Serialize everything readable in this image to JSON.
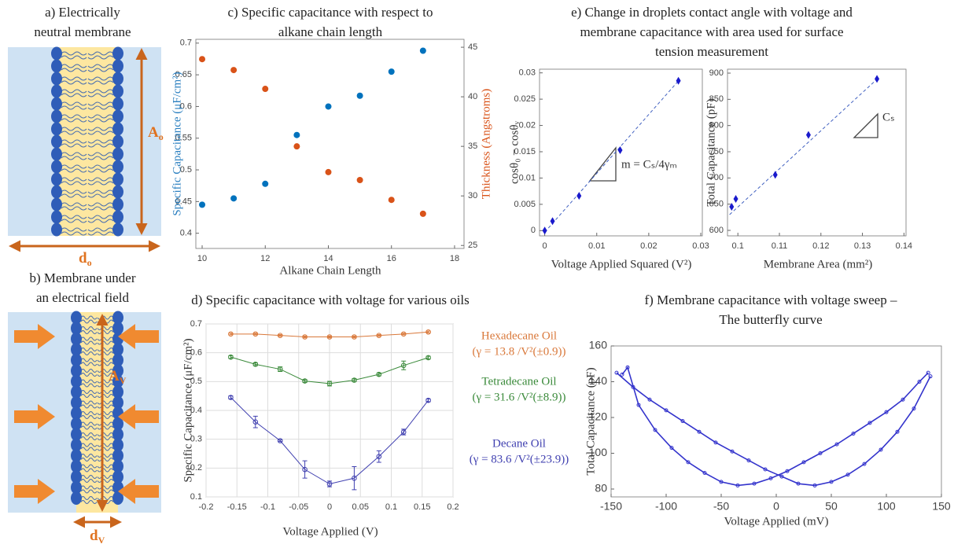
{
  "diagrams": [
    {
      "title": [
        "a) Electrically",
        "neutral membrane"
      ],
      "height_label": {
        "text": "A",
        "sub": "o"
      },
      "width_label": {
        "text": "d",
        "sub": "o"
      }
    },
    {
      "title": [
        "b) Membrane under",
        "an electrical field"
      ],
      "height_label": {
        "text": "A",
        "sub": "V"
      },
      "width_label": {
        "text": "d",
        "sub": "V"
      }
    }
  ],
  "chart_data": [
    {
      "type": "scatter",
      "title": [
        "c) Specific capacitance with respect to",
        "alkane chain length"
      ],
      "xlabel": "Alkane Chain Length",
      "ylabel": "Specific Capacitance (μF/cm²)",
      "y2label": "Thickness (Angstroms)",
      "ylabel_color": "#2a7fc0",
      "y2label_color": "#d95319",
      "marker": "circle",
      "x": [
        10,
        11,
        12,
        13,
        14,
        15,
        16,
        17
      ],
      "series": [
        {
          "color": "#0072bd",
          "values": [
            0.445,
            0.455,
            0.478,
            0.555,
            0.6,
            0.617,
            0.655,
            0.688
          ]
        },
        {
          "color": "#d95319",
          "axis": "y2",
          "values": [
            43.8,
            42.7,
            40.8,
            35.0,
            32.4,
            31.6,
            29.6,
            28.2
          ]
        }
      ],
      "xlim": [
        9.8,
        18.3
      ],
      "xticks": [
        10,
        12,
        14,
        16,
        18
      ],
      "ylim": [
        0.376,
        0.706
      ],
      "yticks": [
        0.4,
        0.45,
        0.5,
        0.55,
        0.6,
        0.65,
        0.7
      ],
      "y2lim": [
        24.7,
        45.8
      ],
      "y2ticks": [
        25,
        30,
        35,
        40,
        45
      ]
    },
    {
      "type": "line",
      "title": [
        "d) Specific capacitance with voltage for various oils"
      ],
      "xlabel": "Voltage Applied (V)",
      "ylabel": "Specific Capacitance (μF/cm²)",
      "marker": "open-circle",
      "grid": true,
      "x": [
        -0.16,
        -0.12,
        -0.08,
        -0.04,
        0,
        0.04,
        0.08,
        0.12,
        0.16
      ],
      "series": [
        {
          "name": "Hexadecane Oil",
          "note": "(γ = 13.8 /V²(±0.9))",
          "color": "#d9783a",
          "values": [
            0.665,
            0.665,
            0.66,
            0.655,
            0.655,
            0.655,
            0.66,
            0.665,
            0.672
          ],
          "errors": [
            0.003,
            0.003,
            0.003,
            0.003,
            0.003,
            0.003,
            0.003,
            0.003,
            0.003
          ]
        },
        {
          "name": "Tetradecane Oil",
          "note": "(γ = 31.6 /V²(±8.9))",
          "color": "#3a8a3a",
          "values": [
            0.585,
            0.56,
            0.543,
            0.502,
            0.493,
            0.505,
            0.525,
            0.556,
            0.583
          ],
          "errors": [
            0.005,
            0.005,
            0.008,
            0.005,
            0.008,
            0.005,
            0.005,
            0.015,
            0.005
          ]
        },
        {
          "name": "Decane Oil",
          "note": "(γ = 83.6 /V²(±23.9))",
          "color": "#4040b0",
          "values": [
            0.445,
            0.36,
            0.295,
            0.195,
            0.145,
            0.165,
            0.24,
            0.325,
            0.435
          ],
          "errors": [
            0.005,
            0.02,
            0.003,
            0.03,
            0.01,
            0.04,
            0.02,
            0.01,
            0.005
          ]
        }
      ],
      "xlim": [
        -0.2,
        0.2
      ],
      "xticks": [
        -0.2,
        -0.15,
        -0.1,
        -0.05,
        0,
        0.05,
        0.1,
        0.15,
        0.2
      ],
      "ylim": [
        0.1,
        0.7
      ],
      "yticks": [
        0.1,
        0.2,
        0.3,
        0.4,
        0.5,
        0.6,
        0.7
      ]
    },
    {
      "type": "scatter",
      "title": [
        "e) Change in droplets contact angle with voltage and",
        "membrane capacitance with area used for surface",
        "tension measurement"
      ],
      "xlabel": "Voltage Applied Squared (V²)",
      "ylabel": "cosθ₀ − cosθᵥ",
      "marker": "diamond",
      "annotation": "m = Cₛ/4γₘ",
      "x": [
        0,
        0.0015,
        0.0066,
        0.0145,
        0.0257
      ],
      "series": [
        {
          "color": "#1a1acc",
          "values": [
            0,
            0.0018,
            0.0066,
            0.0153,
            0.0285
          ]
        }
      ],
      "fit_line": {
        "x": [
          0,
          0.026
        ],
        "y": [
          -0.0003,
          0.0288
        ]
      },
      "xlim": [
        -0.001,
        0.0303
      ],
      "xticks": [
        0,
        0.01,
        0.02,
        0.03
      ],
      "ylim": [
        -0.001,
        0.0307
      ],
      "yticks": [
        0,
        0.005,
        0.01,
        0.015,
        0.02,
        0.025,
        0.03
      ]
    },
    {
      "type": "scatter",
      "xlabel": "Membrane Area (mm²)",
      "ylabel": "Total Capacitance (pF)",
      "marker": "diamond",
      "annotation": "Cₛ",
      "x": [
        0.0985,
        0.0995,
        0.109,
        0.117,
        0.1335
      ],
      "series": [
        {
          "color": "#1a1acc",
          "values": [
            645,
            660,
            706,
            782,
            889
          ]
        }
      ],
      "fit_line": {
        "x": [
          0.098,
          0.134
        ],
        "y": [
          630,
          892
        ]
      },
      "xlim": [
        0.0975,
        0.1405
      ],
      "xticks": [
        0.1,
        0.11,
        0.12,
        0.13,
        0.14
      ],
      "ylim": [
        589.5,
        907.5
      ],
      "yticks": [
        600,
        650,
        700,
        750,
        800,
        850,
        900
      ]
    },
    {
      "type": "line",
      "title": [
        "f) Membrane capacitance with voltage sweep –",
        "The butterfly curve"
      ],
      "xlabel": "Voltage Applied (mV)",
      "ylabel": "Total Capacitance (pF)",
      "marker": "open-circle",
      "series": [
        {
          "color": "#3333cc",
          "x": [
            -145,
            -130,
            -115,
            -100,
            -85,
            -70,
            -55,
            -40,
            -25,
            -10,
            5,
            20,
            35,
            50,
            65,
            80,
            95,
            110,
            125,
            140
          ],
          "values": [
            145,
            137,
            130,
            124,
            118,
            112,
            106,
            101,
            96,
            91,
            87,
            83,
            82,
            84,
            88,
            94,
            102,
            112,
            125,
            143
          ]
        },
        {
          "color": "#3333cc",
          "x": [
            -140,
            -135,
            -125,
            -110,
            -95,
            -80,
            -65,
            -50,
            -35,
            -20,
            -5,
            10,
            25,
            40,
            55,
            70,
            85,
            100,
            115,
            130,
            138
          ],
          "values": [
            144,
            148,
            127,
            113,
            103,
            95,
            89,
            84,
            82,
            83,
            86,
            90,
            95,
            100,
            105,
            111,
            117,
            123,
            130,
            140,
            145
          ]
        }
      ],
      "xlim": [
        -150,
        150
      ],
      "xticks": [
        -150,
        -100,
        -50,
        0,
        50,
        100,
        150
      ],
      "ylim": [
        75.6,
        160
      ],
      "yticks": [
        80,
        100,
        120,
        140,
        160
      ]
    }
  ]
}
